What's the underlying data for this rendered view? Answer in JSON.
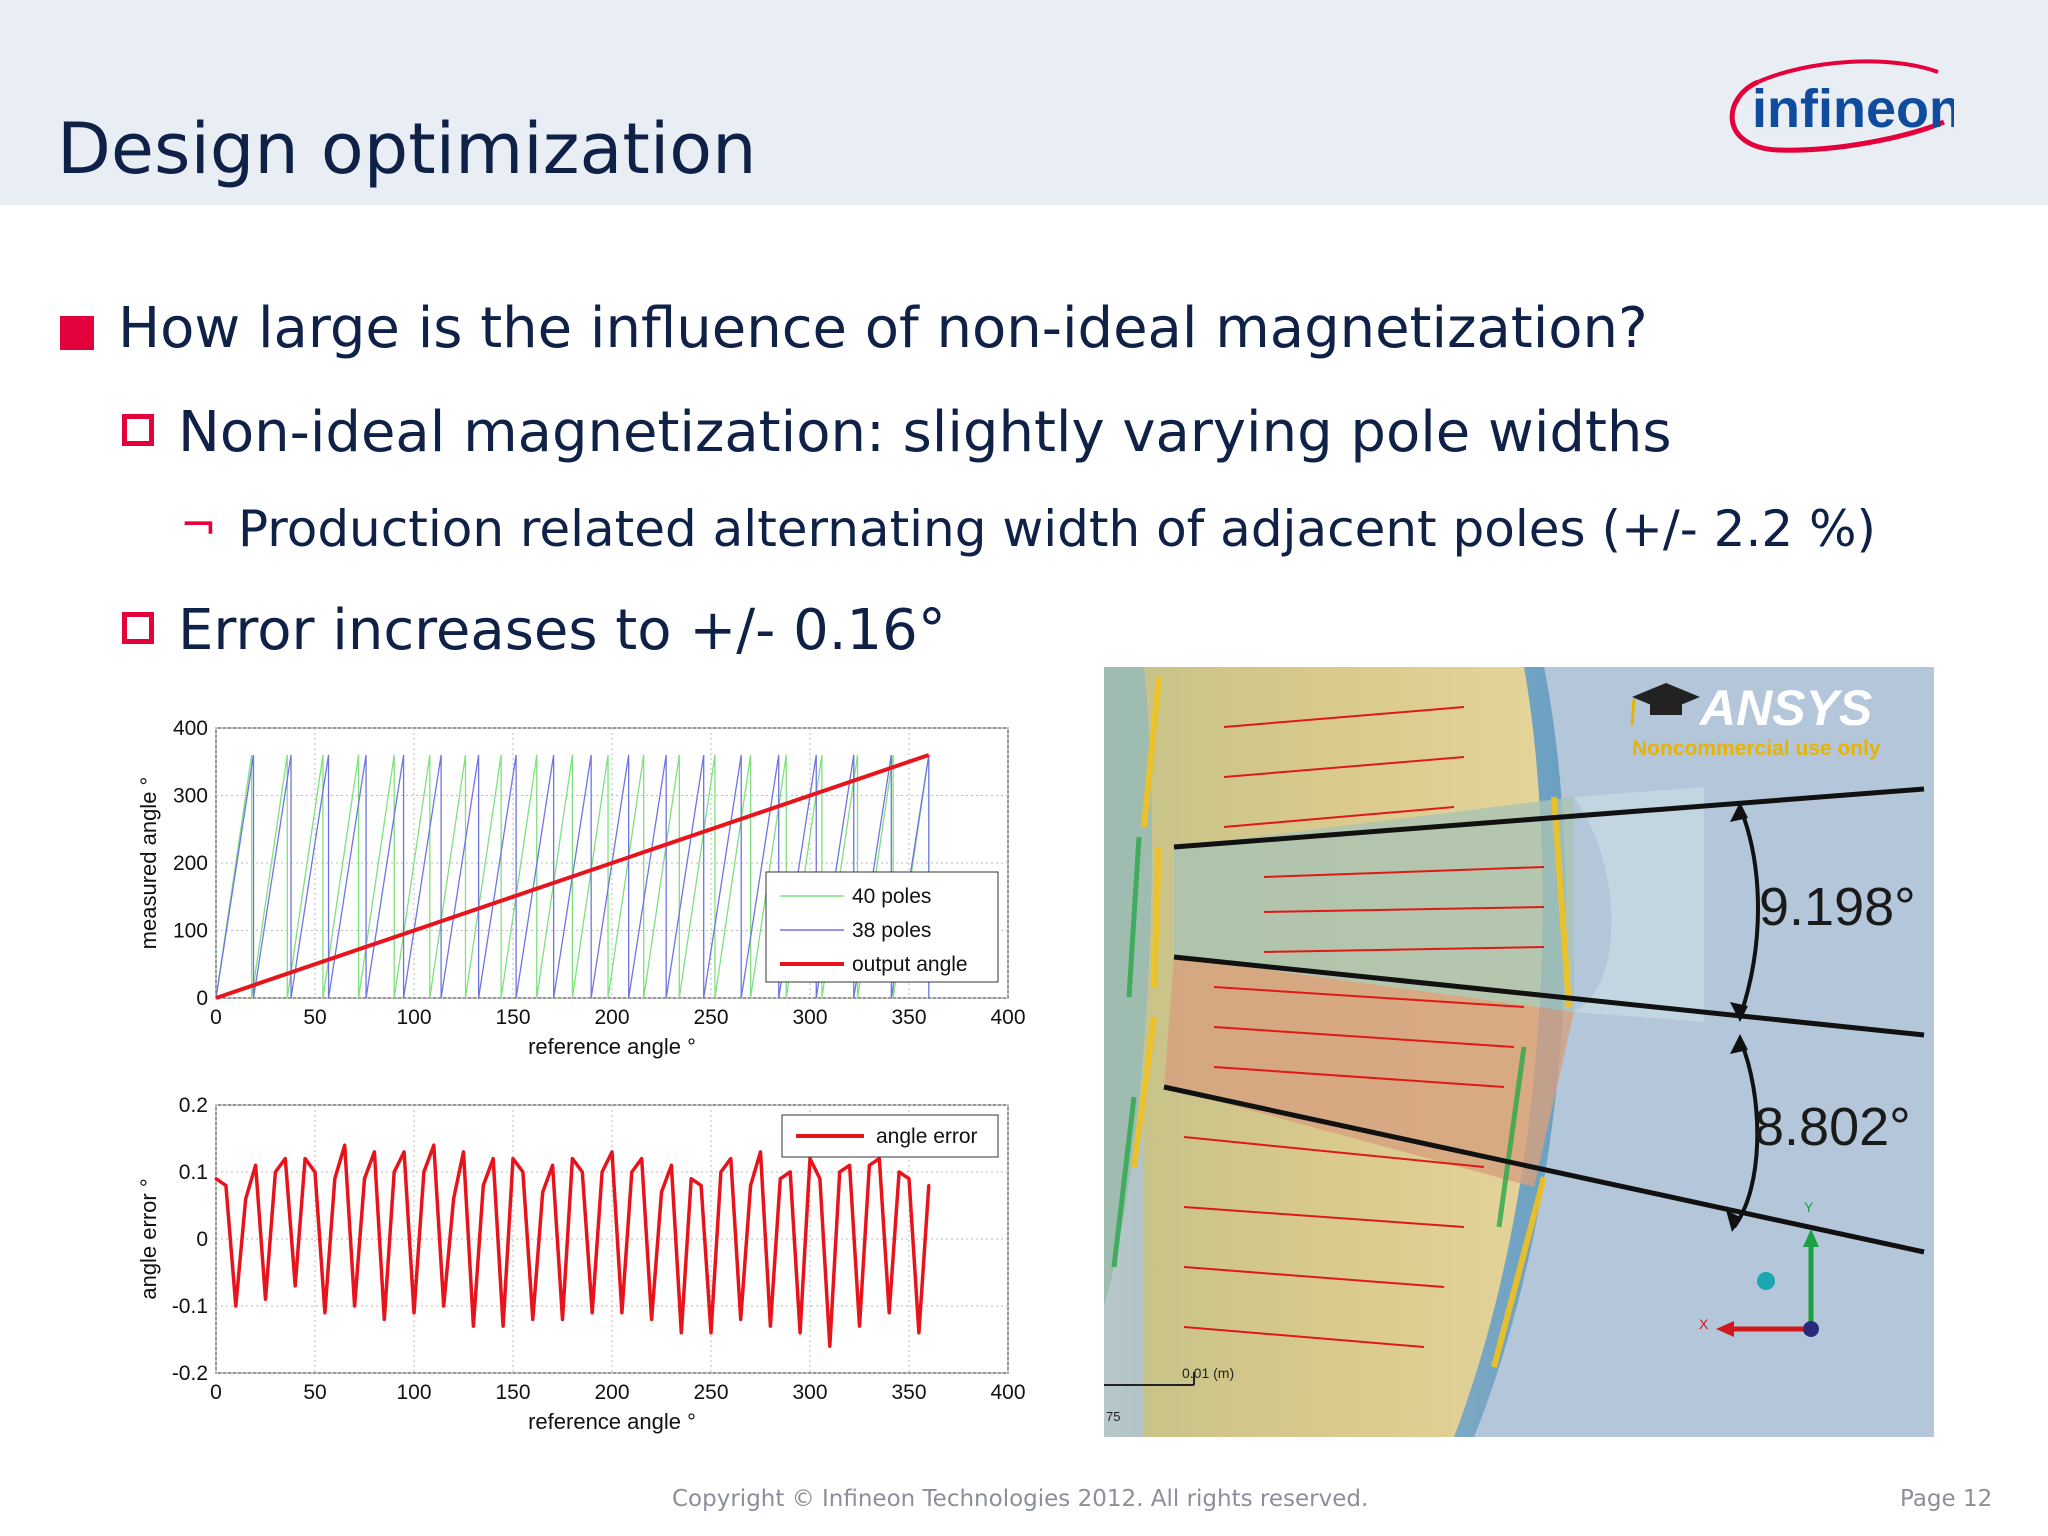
{
  "slide": {
    "title": "Design optimization",
    "logo_text": "infineon",
    "bullets": [
      {
        "level": 1,
        "text": "How large is the influence of non-ideal magnetization?"
      },
      {
        "level": 2,
        "text": "Non-ideal magnetization: slightly varying pole widths"
      },
      {
        "level": 3,
        "marker": "¬",
        "text": "Production related alternating width of adjacent poles (+/- 2.2 %)"
      },
      {
        "level": 2,
        "text": "Error increases to +/- 0.16°"
      }
    ],
    "footer": "Copyright © Infineon Technologies 2012. All rights reserved.",
    "page": "Page 12",
    "colors": {
      "accent_red": "#e3003b",
      "navy": "#0f2147",
      "header_bg": "#e9eef5"
    }
  },
  "simulation": {
    "brand": "ANSYS",
    "brand_sub": "Noncommercial use only",
    "angle1": "9.198°",
    "angle2": "8.802°",
    "scale_label": "0.01 (m)",
    "scale_tick": "75",
    "axis_x": "X",
    "axis_y": "Y"
  },
  "chart_data": [
    {
      "type": "line",
      "xlabel": "reference angle °",
      "ylabel": "measured angle °",
      "xlim": [
        0,
        400
      ],
      "ylim": [
        0,
        400
      ],
      "xticks": [
        0,
        50,
        100,
        150,
        200,
        250,
        300,
        350,
        400
      ],
      "yticks": [
        0,
        100,
        200,
        300,
        400
      ],
      "grid": true,
      "legend": "right",
      "series": [
        {
          "name": "40 poles",
          "color": "#7fe07f",
          "kind": "sawtooth",
          "period": 18,
          "x": [
            0,
            360
          ],
          "y_range": [
            0,
            360
          ]
        },
        {
          "name": "38 poles",
          "color": "#6f74e0",
          "kind": "sawtooth",
          "period": 18.947,
          "x": [
            0,
            360
          ],
          "y_range": [
            0,
            360
          ]
        },
        {
          "name": "output angle",
          "color": "#e8141c",
          "x": [
            0,
            360
          ],
          "y": [
            0,
            360
          ]
        }
      ]
    },
    {
      "type": "line",
      "xlabel": "reference angle °",
      "ylabel": "angle error °",
      "xlim": [
        0,
        400
      ],
      "ylim": [
        -0.2,
        0.2
      ],
      "xticks": [
        0,
        50,
        100,
        150,
        200,
        250,
        300,
        350,
        400
      ],
      "yticks": [
        -0.2,
        -0.1,
        0,
        0.1,
        0.2
      ],
      "grid": true,
      "legend": "top-right",
      "series": [
        {
          "name": "angle error",
          "color": "#e8141c",
          "x": [
            0,
            5,
            10,
            15,
            20,
            25,
            30,
            35,
            40,
            45,
            50,
            55,
            60,
            65,
            70,
            75,
            80,
            85,
            90,
            95,
            100,
            105,
            110,
            115,
            120,
            125,
            130,
            135,
            140,
            145,
            150,
            155,
            160,
            165,
            170,
            175,
            180,
            185,
            190,
            195,
            200,
            205,
            210,
            215,
            220,
            225,
            230,
            235,
            240,
            245,
            250,
            255,
            260,
            265,
            270,
            275,
            280,
            285,
            290,
            295,
            300,
            305,
            310,
            315,
            320,
            325,
            330,
            335,
            340,
            345,
            350,
            355,
            360
          ],
          "y": [
            0.09,
            0.08,
            -0.1,
            0.06,
            0.11,
            -0.09,
            0.1,
            0.12,
            -0.07,
            0.12,
            0.1,
            -0.11,
            0.09,
            0.14,
            -0.1,
            0.09,
            0.13,
            -0.12,
            0.1,
            0.13,
            -0.11,
            0.1,
            0.14,
            -0.1,
            0.06,
            0.13,
            -0.13,
            0.08,
            0.12,
            -0.13,
            0.12,
            0.1,
            -0.12,
            0.07,
            0.11,
            -0.12,
            0.12,
            0.1,
            -0.11,
            0.1,
            0.13,
            -0.11,
            0.1,
            0.12,
            -0.12,
            0.07,
            0.11,
            -0.14,
            0.09,
            0.08,
            -0.14,
            0.1,
            0.12,
            -0.12,
            0.08,
            0.13,
            -0.13,
            0.09,
            0.1,
            -0.14,
            0.12,
            0.09,
            -0.16,
            0.1,
            0.11,
            -0.13,
            0.11,
            0.12,
            -0.11,
            0.1,
            0.09,
            -0.14,
            0.08
          ]
        }
      ]
    }
  ]
}
